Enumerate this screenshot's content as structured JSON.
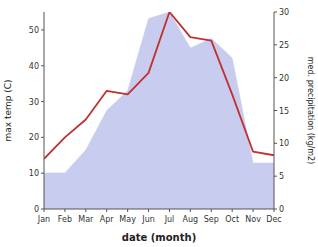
{
  "chart_data": {
    "type": "line",
    "xlabel": "date (month)",
    "ylabel": "max temp (C)",
    "y2label": "med. precipitation (kg/m2)",
    "categories": [
      "Jan",
      "Feb",
      "Mar",
      "Apr",
      "May",
      "Jun",
      "Jul",
      "Aug",
      "Sep",
      "Oct",
      "Nov",
      "Dec"
    ],
    "series": [
      {
        "type": "area",
        "axis": "y2",
        "color": "#c8ccee",
        "values": [
          5.5,
          5.5,
          9,
          15,
          18,
          29,
          30,
          24.5,
          26,
          23,
          7,
          7
        ]
      },
      {
        "type": "line",
        "color": "#c03030",
        "values": [
          14,
          20,
          25,
          33,
          32,
          38,
          55,
          48,
          47,
          32,
          16,
          15
        ]
      }
    ],
    "ylim": [
      0,
      55
    ],
    "yticks": [
      0,
      10,
      20,
      30,
      40,
      50
    ],
    "y2lim": [
      0,
      30
    ],
    "y2ticks": [
      0,
      5,
      10,
      15,
      20,
      25,
      30
    ]
  }
}
